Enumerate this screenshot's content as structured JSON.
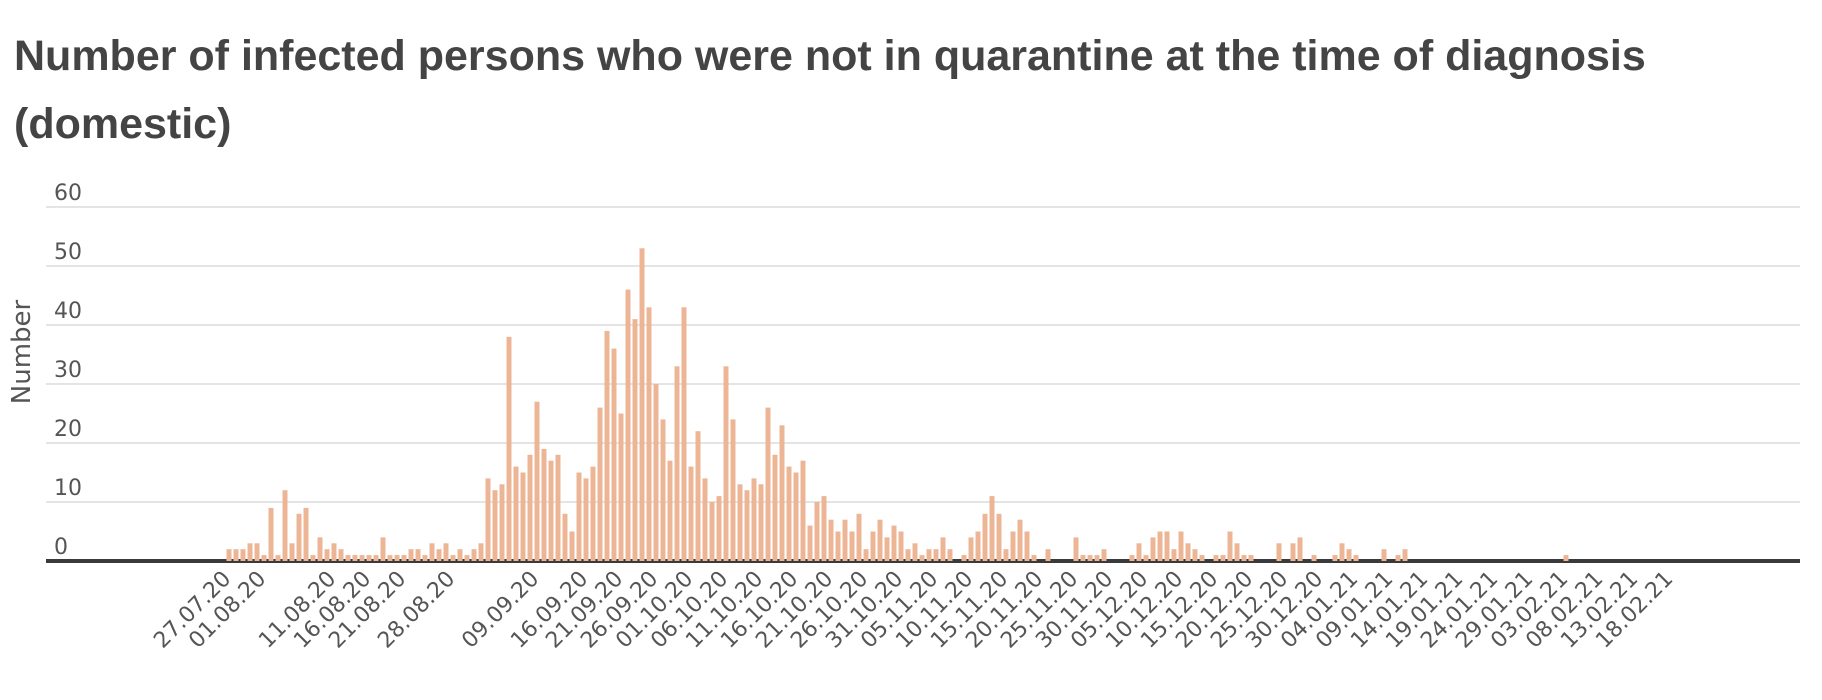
{
  "chart_data": {
    "type": "bar",
    "title": "Number of infected persons who were not in quarantine at the time of diagnosis (domestic)",
    "xlabel": "",
    "ylabel": "Number",
    "ylim": [
      0,
      60
    ],
    "yticks": [
      0,
      10,
      20,
      30,
      40,
      50,
      60
    ],
    "x_tick_labels": [
      "27.07.20",
      "01.08.20",
      "11.08.20",
      "16.08.20",
      "21.08.20",
      "28.08.20",
      "09.09.20",
      "16.09.20",
      "21.09.20",
      "26.09.20",
      "01.10.20",
      "06.10.20",
      "11.10.20",
      "16.10.20",
      "21.10.20",
      "26.10.20",
      "31.10.20",
      "05.11.20",
      "10.11.20",
      "15.11.20",
      "20.11.20",
      "25.11.20",
      "30.11.20",
      "05.12.20",
      "10.12.20",
      "15.12.20",
      "20.12.20",
      "25.12.20",
      "30.12.20",
      "04.01.21",
      "09.01.21",
      "14.01.21",
      "19.01.21",
      "24.01.21",
      "29.01.21",
      "03.02.21",
      "08.02.21",
      "13.02.21",
      "18.02.21"
    ],
    "start_date": "27.07.20",
    "bar_color": "#ecb595",
    "values": [
      2,
      2,
      2,
      3,
      3,
      1,
      9,
      1,
      12,
      3,
      8,
      9,
      1,
      4,
      2,
      3,
      2,
      1,
      1,
      1,
      1,
      1,
      4,
      1,
      1,
      1,
      2,
      2,
      1,
      3,
      2,
      3,
      1,
      2,
      1,
      2,
      3,
      14,
      12,
      13,
      38,
      16,
      15,
      18,
      27,
      19,
      17,
      18,
      8,
      5,
      15,
      14,
      16,
      26,
      39,
      36,
      25,
      46,
      41,
      53,
      43,
      30,
      24,
      17,
      33,
      43,
      16,
      22,
      14,
      10,
      11,
      33,
      24,
      13,
      12,
      14,
      13,
      26,
      18,
      23,
      16,
      15,
      17,
      6,
      10,
      11,
      7,
      5,
      7,
      5,
      8,
      2,
      5,
      7,
      4,
      6,
      5,
      2,
      3,
      1,
      2,
      2,
      4,
      2,
      0,
      1,
      4,
      5,
      8,
      11,
      8,
      2,
      5,
      7,
      5,
      1,
      0,
      2,
      0,
      0,
      0,
      4,
      1,
      1,
      1,
      2,
      0,
      0,
      0,
      1,
      3,
      1,
      4,
      5,
      5,
      2,
      5,
      3,
      2,
      1,
      0,
      1,
      1,
      5,
      3,
      1,
      1,
      0,
      0,
      0,
      3,
      0,
      3,
      4,
      0,
      1,
      0,
      0,
      1,
      3,
      2,
      1,
      0,
      0,
      0,
      2,
      0,
      1,
      2,
      0,
      0,
      0,
      0,
      0,
      0,
      0,
      0,
      0,
      0,
      0,
      0,
      0,
      0,
      0,
      0,
      0,
      0,
      0,
      0,
      0,
      0,
      1,
      0,
      0,
      0,
      0,
      0,
      0,
      0,
      0,
      0,
      0,
      0,
      0,
      0,
      0,
      0,
      0,
      0,
      0,
      0,
      0,
      0,
      0,
      0,
      0,
      0,
      0,
      0,
      0,
      0,
      0,
      0,
      0,
      0,
      0,
      0
    ]
  }
}
